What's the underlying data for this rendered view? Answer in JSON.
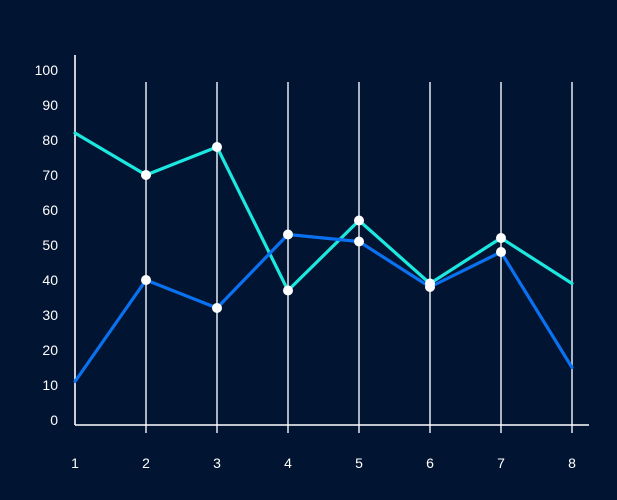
{
  "chart_data": {
    "type": "line",
    "x": [
      1,
      2,
      3,
      4,
      5,
      6,
      7,
      8
    ],
    "ylim": [
      0,
      100
    ],
    "yticks": [
      0,
      10,
      20,
      30,
      40,
      50,
      60,
      70,
      80,
      90,
      100
    ],
    "grid": "vertical",
    "series": [
      {
        "color": "#1ce8e0",
        "values": [
          82,
          70,
          78,
          37,
          57,
          39,
          52,
          39
        ],
        "markers_at": [
          2,
          3,
          4,
          5,
          6,
          7
        ]
      },
      {
        "color": "#0a72f0",
        "values": [
          11,
          40,
          32,
          53,
          51,
          38,
          48,
          15
        ],
        "markers_at": [
          2,
          3,
          4,
          5,
          6,
          7
        ]
      }
    ]
  },
  "colors": {
    "background": "#011431",
    "axis": "#ffffff",
    "grid": "#d8dde6",
    "marker": "#ffffff",
    "text": "#ffffff"
  }
}
